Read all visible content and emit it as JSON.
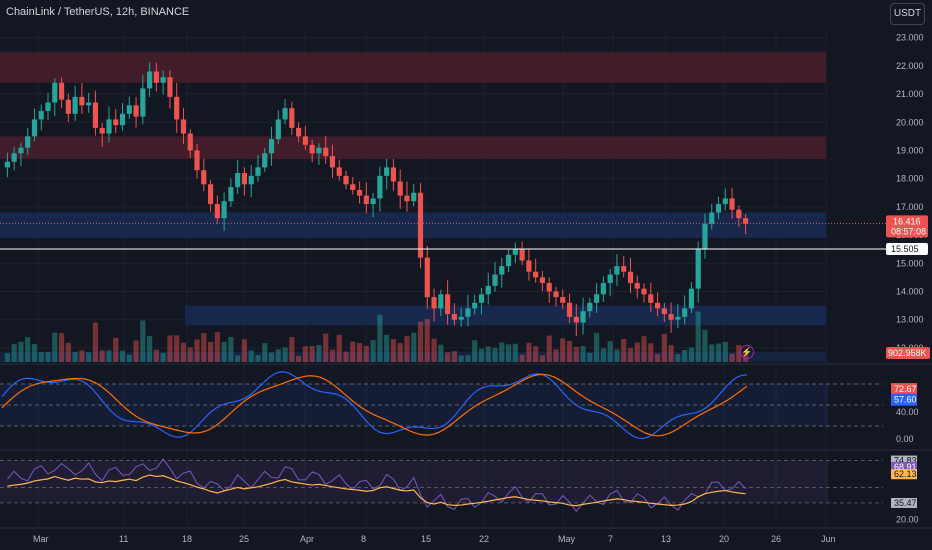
{
  "header": {
    "title": "ChainLink / TetherUS, 12h, BINANCE",
    "currency": "USDT"
  },
  "price_axis": {
    "ticks": [
      "23.000",
      "22.000",
      "21.000",
      "20.000",
      "19.000",
      "18.000",
      "17.000",
      "16.000",
      "15.000",
      "14.000",
      "13.000",
      "12.000"
    ],
    "last_price": "16.416",
    "countdown": "08:57:08",
    "line_level": "15.505",
    "volume_label": "902.958K"
  },
  "stoch_axis": {
    "k_value": "72.67",
    "d_value": "57.60",
    "tick_mid": "40.00",
    "tick_low": "0.00"
  },
  "rsi_axis": {
    "upper": "74.83",
    "rsi_value": "68.91",
    "ma_value": "62.13",
    "lower": "35.47",
    "tick_low": "20.00"
  },
  "time_axis": [
    "Mar",
    "11",
    "18",
    "25",
    "Apr",
    "8",
    "15",
    "22",
    "May",
    "7",
    "13",
    "20",
    "26",
    "Jun"
  ],
  "colors": {
    "up": "#26a69a",
    "down": "#ef5350",
    "supply_zone": "#4a1d2c",
    "demand_zone": "#1a2a52",
    "stoch_k": "#2962ff",
    "stoch_d": "#ff6d00",
    "rsi": "#7e57c2",
    "rsi_ma": "#ffb74d"
  },
  "chart_data": {
    "type": "candlestick",
    "price_ylim": [
      11.5,
      23.2
    ],
    "supply_zones": [
      [
        21.4,
        22.5
      ],
      [
        18.7,
        19.5
      ]
    ],
    "demand_zones": [
      [
        15.9,
        16.8
      ],
      [
        12.8,
        13.5
      ]
    ],
    "closes": [
      18.6,
      18.9,
      19.1,
      19.5,
      20.1,
      20.4,
      20.7,
      21.4,
      20.8,
      20.3,
      20.9,
      20.6,
      20.7,
      19.8,
      19.6,
      20.1,
      19.9,
      20.3,
      20.6,
      20.2,
      21.2,
      21.8,
      21.4,
      21.6,
      20.9,
      20.1,
      19.6,
      19.0,
      18.3,
      17.8,
      17.1,
      16.6,
      17.2,
      17.7,
      18.2,
      17.8,
      18.1,
      18.4,
      18.9,
      19.4,
      20.1,
      20.5,
      19.8,
      19.5,
      19.2,
      18.9,
      19.1,
      18.8,
      18.4,
      18.1,
      17.8,
      17.6,
      17.4,
      17.1,
      17.3,
      18.1,
      18.4,
      17.9,
      17.4,
      17.2,
      17.5,
      15.2,
      13.8,
      13.4,
      13.9,
      13.2,
      13.0,
      13.1,
      13.4,
      13.6,
      13.9,
      14.2,
      14.6,
      14.9,
      15.3,
      15.5,
      15.1,
      14.7,
      14.5,
      14.3,
      14.0,
      13.8,
      13.6,
      13.1,
      12.9,
      13.3,
      13.6,
      13.9,
      14.3,
      14.6,
      14.9,
      14.7,
      14.3,
      14.1,
      13.9,
      13.6,
      13.4,
      13.2,
      13.0,
      13.1,
      13.4,
      14.1,
      15.5,
      16.4,
      16.8,
      17.1,
      17.3,
      16.9,
      16.6,
      16.4
    ],
    "stoch_k_now": 72.67,
    "stoch_d_now": 57.6,
    "rsi_now": 68.91,
    "rsi_ma_now": 62.13,
    "rsi_upper": 74.83,
    "rsi_lower": 35.47
  }
}
